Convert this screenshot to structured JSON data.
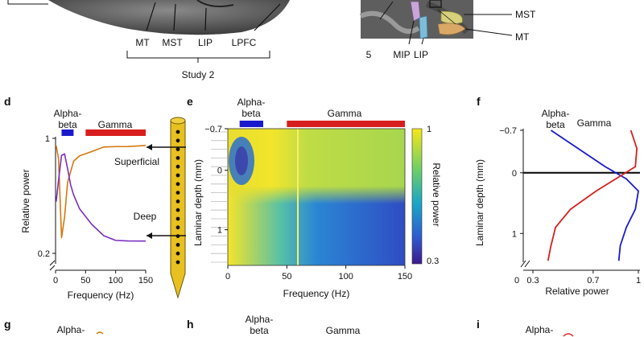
{
  "top": {
    "study_regions": [
      "MT",
      "MST",
      "LIP",
      "LPFC"
    ],
    "study_label": "Study 2",
    "right_regions": [
      "5",
      "MIP",
      "LIP"
    ],
    "right_callouts": [
      "MST",
      "MT"
    ]
  },
  "panels": {
    "d": "d",
    "e": "e",
    "f": "f",
    "g": "g",
    "h": "h",
    "i": "i"
  },
  "band_labels": {
    "alpha_beta": "Alpha-\nbeta",
    "alpha": "Alpha-",
    "beta": "beta",
    "gamma": "Gamma"
  },
  "colors": {
    "alpha_beta": "#1a1acc",
    "gamma": "#d81e1e",
    "superficial": "#d4780e",
    "deep": "#7a2fbf",
    "probe": "#e8c020"
  },
  "chart_data": [
    {
      "id": "d",
      "type": "line",
      "xlabel": "Frequency (Hz)",
      "ylabel": "Relative power",
      "xlim": [
        0,
        150
      ],
      "ylim": [
        0.2,
        1
      ],
      "xticks": [
        "0",
        "50",
        "100",
        "150"
      ],
      "yticks": [
        "0.2",
        "1"
      ],
      "bands": [
        {
          "name": "Alpha-beta",
          "range": [
            10,
            30
          ]
        },
        {
          "name": "Gamma",
          "range": [
            50,
            150
          ]
        }
      ],
      "series": [
        {
          "name": "Superficial",
          "x": [
            1,
            5,
            10,
            15,
            20,
            30,
            40,
            60,
            80,
            100,
            120,
            150
          ],
          "y": [
            0.95,
            0.85,
            0.3,
            0.45,
            0.7,
            0.85,
            0.88,
            0.9,
            0.93,
            0.94,
            0.95,
            0.96
          ]
        },
        {
          "name": "Deep",
          "x": [
            1,
            5,
            10,
            15,
            20,
            25,
            30,
            40,
            60,
            80,
            100,
            120,
            150
          ],
          "y": [
            0.55,
            0.7,
            0.88,
            0.9,
            0.8,
            0.68,
            0.6,
            0.5,
            0.4,
            0.33,
            0.3,
            0.29,
            0.28
          ]
        }
      ]
    },
    {
      "id": "e",
      "type": "heatmap",
      "xlabel": "Frequency (Hz)",
      "ylabel": "Laminar depth (mm)",
      "colorbar_label": "Relative power",
      "xlim": [
        0,
        150
      ],
      "ylim": [
        -0.7,
        1.6
      ],
      "xticks": [
        "0",
        "50",
        "100",
        "150"
      ],
      "yticks": [
        "-0.7",
        "0",
        "1"
      ],
      "clim": [
        0.3,
        1
      ],
      "clim_ticks": [
        "1",
        "0.3"
      ]
    },
    {
      "id": "f",
      "type": "line",
      "xlabel": "Relative power",
      "ylabel": "Laminar depth (mm)",
      "xlim": [
        0.3,
        1
      ],
      "ylim": [
        -0.7,
        1.5
      ],
      "xticks": [
        "0.3",
        "0.7",
        "1"
      ],
      "yticks": [
        "-0.7",
        "0",
        "1"
      ],
      "series": [
        {
          "name": "Alpha-beta",
          "depth": [
            -0.7,
            -0.4,
            -0.1,
            0.1,
            0.3,
            0.6,
            0.9,
            1.2,
            1.45
          ],
          "power": [
            0.42,
            0.6,
            0.78,
            0.92,
            1.0,
            0.98,
            0.92,
            0.88,
            0.87
          ]
        },
        {
          "name": "Gamma",
          "depth": [
            -0.7,
            -0.4,
            -0.1,
            0.1,
            0.3,
            0.6,
            0.9,
            1.2,
            1.45
          ],
          "power": [
            0.95,
            0.99,
            0.98,
            0.85,
            0.72,
            0.55,
            0.45,
            0.42,
            0.4
          ]
        }
      ]
    }
  ]
}
